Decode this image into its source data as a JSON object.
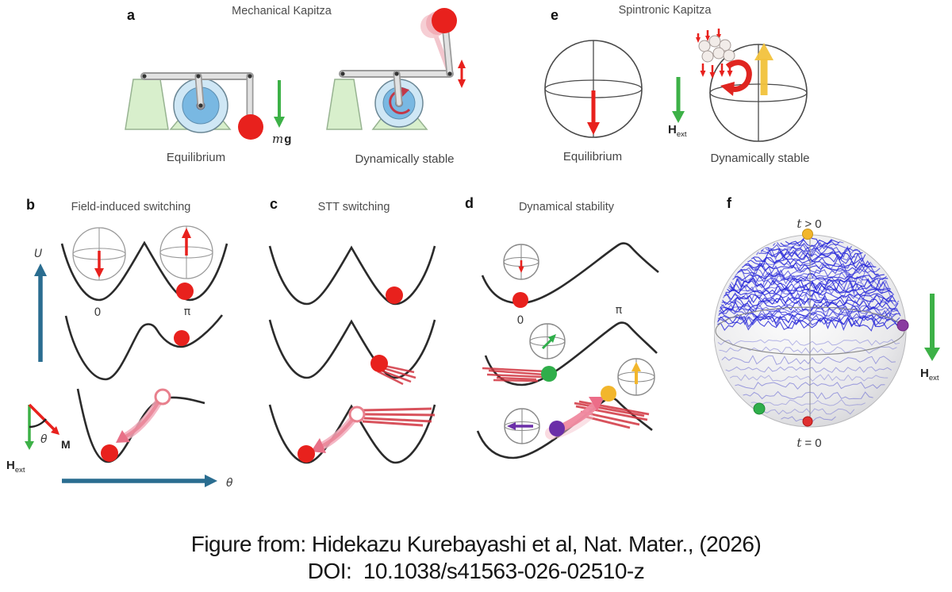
{
  "panel_a": {
    "letter": "a",
    "title": "Mechanical Kapitza",
    "label_left": "Equilibrium",
    "label_right": "Dynamically stable",
    "gravity_m": "m",
    "gravity_g": "g"
  },
  "panel_b": {
    "letter": "b",
    "title": "Field-induced switching",
    "axis_u": "U",
    "axis_theta": "θ",
    "well_zero": "0",
    "well_pi": "π",
    "angle_theta": "θ",
    "magnetization": "M",
    "field_h": "H",
    "field_sub": "ext"
  },
  "panel_c": {
    "letter": "c",
    "title": "STT switching"
  },
  "panel_d": {
    "letter": "d",
    "title": "Dynamical stability",
    "well_zero": "0",
    "well_pi": "π"
  },
  "panel_e": {
    "letter": "e",
    "title": "Spintronic Kapitza",
    "label_left": "Equilibrium",
    "label_right": "Dynamically stable",
    "field_h": "H",
    "field_sub": "ext"
  },
  "panel_f": {
    "letter": "f",
    "t_var": "t",
    "rel_pos": "> 0",
    "t_var2": "t",
    "rel_zero": "= 0",
    "field_h": "H",
    "field_sub": "ext"
  },
  "caption": {
    "line1": "Figure from: Hidekazu Kurebayashi et al, Nat. Mater., (2026)",
    "line2": "DOI:  10.1038/s41563-026-02510-z"
  },
  "colors": {
    "red": "#e8211d",
    "green": "#3db147",
    "teal": "#2a6d90",
    "yellow": "#f2b62c",
    "pink": "#f0a3b4",
    "purple": "#6b2fa8",
    "trajectory_blue": "#2323d8",
    "stand_green": "#d8efcc",
    "wheel_blue": "#79b8e2"
  }
}
